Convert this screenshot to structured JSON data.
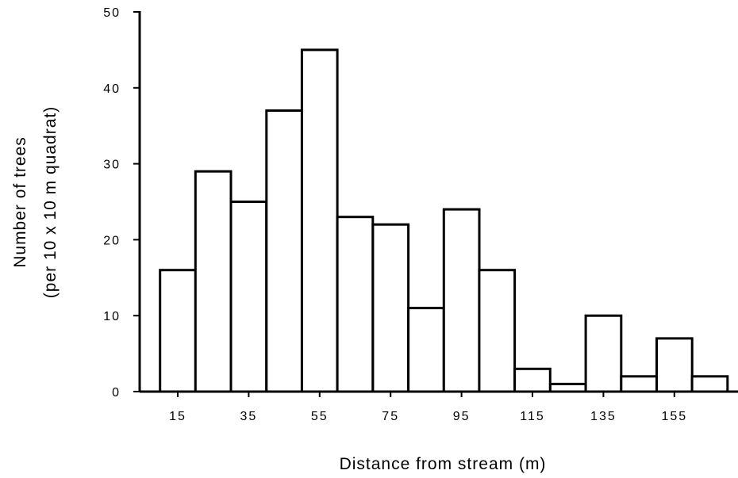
{
  "chart_data": {
    "type": "bar",
    "categories": [
      "15",
      "25",
      "35",
      "45",
      "55",
      "65",
      "75",
      "85",
      "95",
      "105",
      "115",
      "125",
      "135",
      "145",
      "155",
      "165"
    ],
    "values": [
      16,
      29,
      25,
      37,
      45,
      23,
      22,
      11,
      24,
      16,
      3,
      1,
      10,
      2,
      7,
      2
    ],
    "xticks": [
      "15",
      "35",
      "55",
      "75",
      "95",
      "115",
      "135",
      "155"
    ],
    "yticks": [
      0,
      10,
      20,
      30,
      40,
      50
    ],
    "title": "",
    "xlabel": "Distance from stream (m)",
    "ylabel_line1": "Number of trees",
    "ylabel_line2": "(per 10 x 10 m quadrat)",
    "ylim": [
      0,
      50
    ],
    "grid": false,
    "bar_fill": "#ffffff",
    "bar_stroke": "#000000"
  }
}
